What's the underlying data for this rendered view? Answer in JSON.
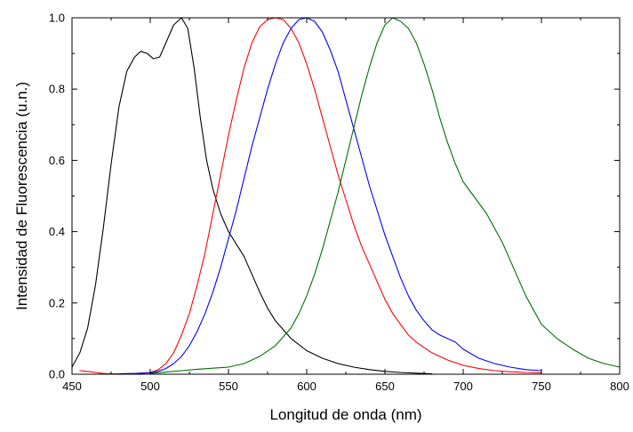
{
  "chart_data": {
    "type": "line",
    "xlabel": "Longitud de onda (nm)",
    "ylabel": "Intensidad de Fluorescencia (u.n.)",
    "xlim": [
      450,
      800
    ],
    "ylim": [
      0,
      1.0
    ],
    "x_ticks": [
      450,
      500,
      550,
      600,
      650,
      700,
      750,
      800
    ],
    "x_tick_labels": [
      "450",
      "500",
      "550",
      "600",
      "650",
      "700",
      "750",
      "800"
    ],
    "y_ticks": [
      0,
      0.2,
      0.4,
      0.6,
      0.8,
      1.0
    ],
    "y_tick_labels": [
      "0.0",
      "0.2",
      "0.4",
      "0.6",
      "0.8",
      "1.0"
    ],
    "grid": false,
    "legend": "none",
    "series": [
      {
        "color": "#000000",
        "points": [
          [
            450,
            0.02
          ],
          [
            455,
            0.06
          ],
          [
            460,
            0.13
          ],
          [
            465,
            0.25
          ],
          [
            470,
            0.41
          ],
          [
            475,
            0.59
          ],
          [
            480,
            0.75
          ],
          [
            485,
            0.85
          ],
          [
            490,
            0.89
          ],
          [
            494,
            0.906
          ],
          [
            498,
            0.9
          ],
          [
            502,
            0.885
          ],
          [
            506,
            0.89
          ],
          [
            510,
            0.93
          ],
          [
            515,
            0.98
          ],
          [
            520,
            1.0
          ],
          [
            524,
            0.97
          ],
          [
            528,
            0.86
          ],
          [
            532,
            0.72
          ],
          [
            536,
            0.6
          ],
          [
            540,
            0.52
          ],
          [
            545,
            0.45
          ],
          [
            550,
            0.4
          ],
          [
            555,
            0.365
          ],
          [
            560,
            0.33
          ],
          [
            565,
            0.28
          ],
          [
            570,
            0.23
          ],
          [
            575,
            0.185
          ],
          [
            580,
            0.15
          ],
          [
            590,
            0.1
          ],
          [
            600,
            0.066
          ],
          [
            610,
            0.045
          ],
          [
            620,
            0.03
          ],
          [
            630,
            0.02
          ],
          [
            640,
            0.013
          ],
          [
            650,
            0.008
          ],
          [
            660,
            0.005
          ],
          [
            670,
            0.003
          ],
          [
            680,
            0.001
          ]
        ]
      },
      {
        "color": "#ff0000",
        "points": [
          [
            455,
            0.01
          ],
          [
            460,
            0.008
          ],
          [
            465,
            0.005
          ],
          [
            470,
            0.002
          ],
          [
            475,
            0.001
          ],
          [
            480,
            0.001
          ],
          [
            490,
            0.002
          ],
          [
            500,
            0.005
          ],
          [
            505,
            0.012
          ],
          [
            510,
            0.03
          ],
          [
            515,
            0.06
          ],
          [
            520,
            0.11
          ],
          [
            525,
            0.17
          ],
          [
            530,
            0.25
          ],
          [
            535,
            0.34
          ],
          [
            540,
            0.45
          ],
          [
            545,
            0.56
          ],
          [
            550,
            0.67
          ],
          [
            555,
            0.77
          ],
          [
            560,
            0.86
          ],
          [
            565,
            0.93
          ],
          [
            570,
            0.975
          ],
          [
            575,
            0.995
          ],
          [
            580,
            1.0
          ],
          [
            585,
            0.995
          ],
          [
            590,
            0.97
          ],
          [
            595,
            0.93
          ],
          [
            600,
            0.87
          ],
          [
            605,
            0.8
          ],
          [
            610,
            0.72
          ],
          [
            615,
            0.64
          ],
          [
            620,
            0.56
          ],
          [
            625,
            0.49
          ],
          [
            630,
            0.42
          ],
          [
            635,
            0.36
          ],
          [
            640,
            0.31
          ],
          [
            645,
            0.26
          ],
          [
            650,
            0.21
          ],
          [
            655,
            0.17
          ],
          [
            660,
            0.14
          ],
          [
            665,
            0.11
          ],
          [
            670,
            0.09
          ],
          [
            675,
            0.075
          ],
          [
            680,
            0.06
          ],
          [
            690,
            0.04
          ],
          [
            700,
            0.025
          ],
          [
            710,
            0.016
          ],
          [
            720,
            0.01
          ],
          [
            730,
            0.007
          ],
          [
            740,
            0.005
          ],
          [
            750,
            0.004
          ]
        ]
      },
      {
        "color": "#0000ff",
        "points": [
          [
            480,
            0.001
          ],
          [
            490,
            0.002
          ],
          [
            500,
            0.004
          ],
          [
            505,
            0.008
          ],
          [
            510,
            0.016
          ],
          [
            515,
            0.03
          ],
          [
            520,
            0.05
          ],
          [
            525,
            0.08
          ],
          [
            530,
            0.12
          ],
          [
            535,
            0.17
          ],
          [
            540,
            0.23
          ],
          [
            545,
            0.3
          ],
          [
            550,
            0.38
          ],
          [
            555,
            0.46
          ],
          [
            560,
            0.55
          ],
          [
            565,
            0.64
          ],
          [
            570,
            0.72
          ],
          [
            575,
            0.8
          ],
          [
            580,
            0.87
          ],
          [
            585,
            0.93
          ],
          [
            590,
            0.97
          ],
          [
            595,
            0.995
          ],
          [
            600,
            1.0
          ],
          [
            605,
            0.99
          ],
          [
            610,
            0.96
          ],
          [
            615,
            0.91
          ],
          [
            620,
            0.85
          ],
          [
            625,
            0.77
          ],
          [
            630,
            0.69
          ],
          [
            635,
            0.61
          ],
          [
            640,
            0.53
          ],
          [
            645,
            0.46
          ],
          [
            650,
            0.39
          ],
          [
            655,
            0.33
          ],
          [
            660,
            0.27
          ],
          [
            665,
            0.22
          ],
          [
            670,
            0.18
          ],
          [
            675,
            0.15
          ],
          [
            680,
            0.125
          ],
          [
            685,
            0.11
          ],
          [
            690,
            0.1
          ],
          [
            695,
            0.09
          ],
          [
            700,
            0.07
          ],
          [
            710,
            0.045
          ],
          [
            720,
            0.03
          ],
          [
            730,
            0.02
          ],
          [
            740,
            0.013
          ],
          [
            750,
            0.01
          ]
        ]
      },
      {
        "color": "#007000",
        "points": [
          [
            500,
            0.002
          ],
          [
            510,
            0.006
          ],
          [
            520,
            0.01
          ],
          [
            530,
            0.014
          ],
          [
            540,
            0.017
          ],
          [
            550,
            0.02
          ],
          [
            560,
            0.03
          ],
          [
            570,
            0.05
          ],
          [
            580,
            0.08
          ],
          [
            590,
            0.13
          ],
          [
            595,
            0.17
          ],
          [
            600,
            0.22
          ],
          [
            605,
            0.28
          ],
          [
            610,
            0.35
          ],
          [
            615,
            0.43
          ],
          [
            620,
            0.51
          ],
          [
            625,
            0.6
          ],
          [
            630,
            0.69
          ],
          [
            635,
            0.78
          ],
          [
            640,
            0.86
          ],
          [
            645,
            0.93
          ],
          [
            650,
            0.98
          ],
          [
            655,
            1.0
          ],
          [
            660,
            0.99
          ],
          [
            665,
            0.97
          ],
          [
            670,
            0.93
          ],
          [
            675,
            0.87
          ],
          [
            680,
            0.8
          ],
          [
            685,
            0.72
          ],
          [
            690,
            0.65
          ],
          [
            695,
            0.59
          ],
          [
            700,
            0.54
          ],
          [
            705,
            0.51
          ],
          [
            710,
            0.48
          ],
          [
            715,
            0.45
          ],
          [
            720,
            0.41
          ],
          [
            725,
            0.37
          ],
          [
            730,
            0.32
          ],
          [
            735,
            0.27
          ],
          [
            740,
            0.22
          ],
          [
            745,
            0.18
          ],
          [
            750,
            0.14
          ],
          [
            760,
            0.1
          ],
          [
            770,
            0.07
          ],
          [
            780,
            0.045
          ],
          [
            790,
            0.03
          ],
          [
            800,
            0.02
          ]
        ]
      }
    ]
  }
}
